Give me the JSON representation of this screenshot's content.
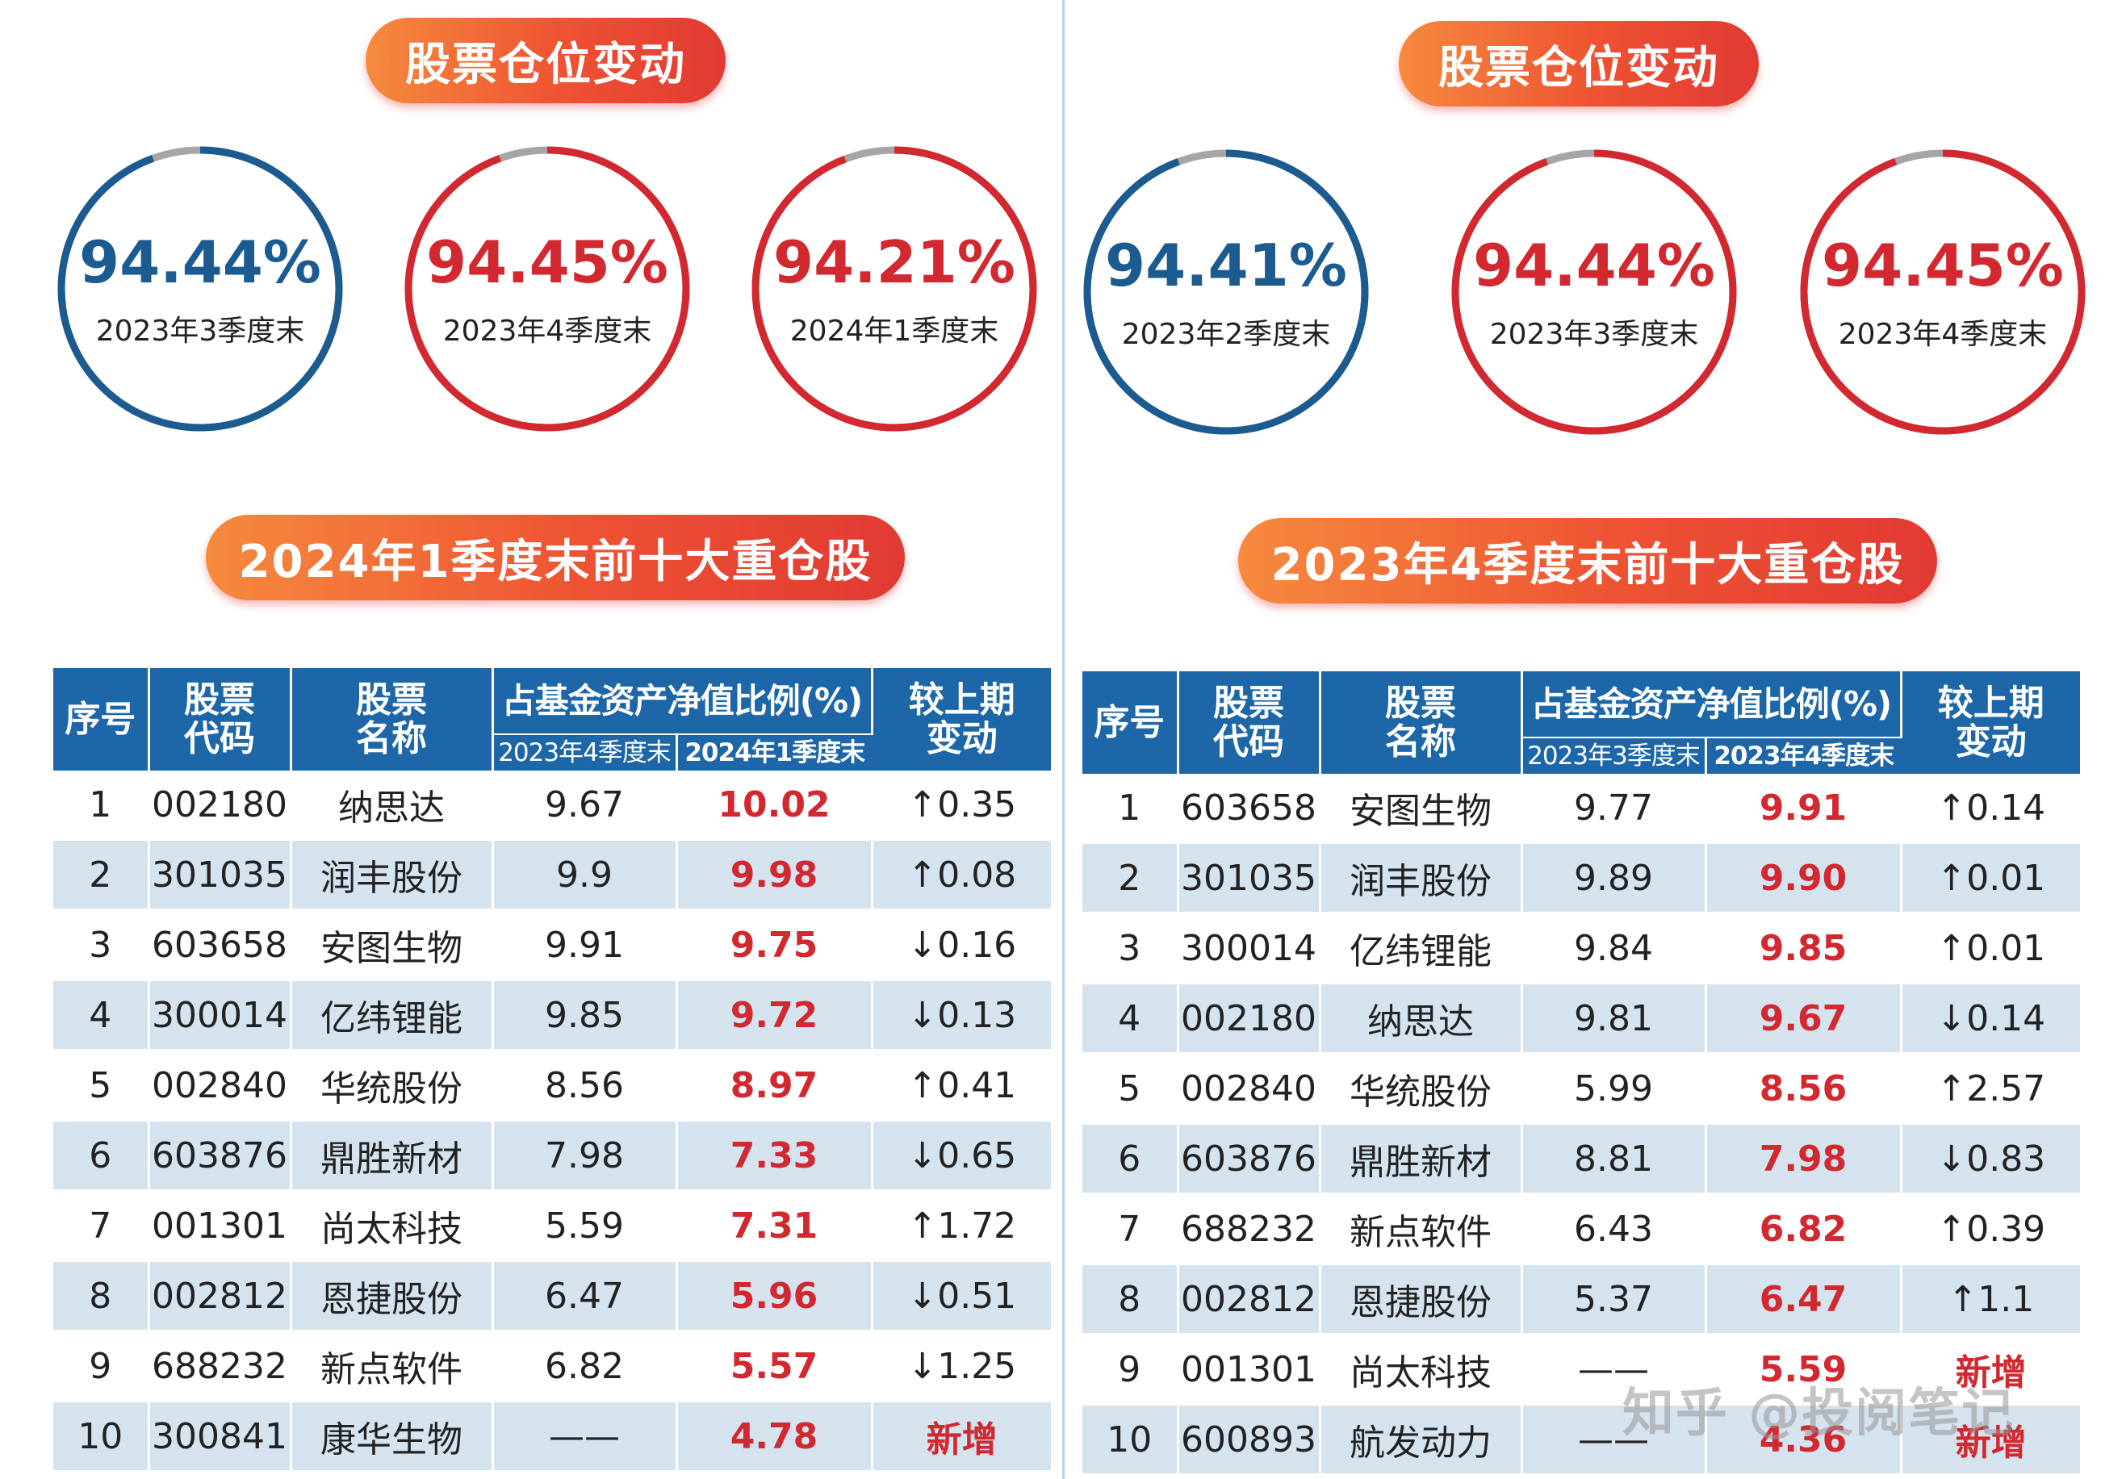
{
  "left": {
    "title": "股票仓位变动",
    "circles": [
      {
        "pct": "94.44%",
        "label": "2023年3季度末",
        "color": "#1b5b8f",
        "value": 94.44
      },
      {
        "pct": "94.45%",
        "label": "2023年4季度末",
        "color": "#d2282f",
        "value": 94.45
      },
      {
        "pct": "94.21%",
        "label": "2024年1季度末",
        "color": "#d2282f",
        "value": 94.21
      }
    ],
    "top10_title": "2024年1季度末前十大重仓股",
    "headers": {
      "no": "序号",
      "code": "股票代码",
      "name": "股票名称",
      "ratio": "占基金资产净值比例(%)",
      "prev": "2023年4季度末",
      "cur": "2024年1季度末",
      "change": "较上期变动"
    },
    "rows": [
      {
        "no": "1",
        "code": "002180",
        "name": "纳思达",
        "prev": "9.67",
        "cur": "10.02",
        "change": "↑0.35"
      },
      {
        "no": "2",
        "code": "301035",
        "name": "润丰股份",
        "prev": "9.9",
        "cur": "9.98",
        "change": "↑0.08"
      },
      {
        "no": "3",
        "code": "603658",
        "name": "安图生物",
        "prev": "9.91",
        "cur": "9.75",
        "change": "↓0.16"
      },
      {
        "no": "4",
        "code": "300014",
        "name": "亿纬锂能",
        "prev": "9.85",
        "cur": "9.72",
        "change": "↓0.13"
      },
      {
        "no": "5",
        "code": "002840",
        "name": "华统股份",
        "prev": "8.56",
        "cur": "8.97",
        "change": "↑0.41"
      },
      {
        "no": "6",
        "code": "603876",
        "name": "鼎胜新材",
        "prev": "7.98",
        "cur": "7.33",
        "change": "↓0.65"
      },
      {
        "no": "7",
        "code": "001301",
        "name": "尚太科技",
        "prev": "5.59",
        "cur": "7.31",
        "change": "↑1.72"
      },
      {
        "no": "8",
        "code": "002812",
        "name": "恩捷股份",
        "prev": "6.47",
        "cur": "5.96",
        "change": "↓0.51"
      },
      {
        "no": "9",
        "code": "688232",
        "name": "新点软件",
        "prev": "6.82",
        "cur": "5.57",
        "change": "↓1.25"
      },
      {
        "no": "10",
        "code": "300841",
        "name": "康华生物",
        "prev": "——",
        "cur": "4.78",
        "change": "新增",
        "is_new": true
      }
    ]
  },
  "right": {
    "title": "股票仓位变动",
    "circles": [
      {
        "pct": "94.41%",
        "label": "2023年2季度末",
        "color": "#1b5b8f",
        "value": 94.41
      },
      {
        "pct": "94.44%",
        "label": "2023年3季度末",
        "color": "#d2282f",
        "value": 94.44
      },
      {
        "pct": "94.45%",
        "label": "2023年4季度末",
        "color": "#d2282f",
        "value": 94.45
      }
    ],
    "top10_title": "2023年4季度末前十大重仓股",
    "headers": {
      "no": "序号",
      "code": "股票代码",
      "name": "股票名称",
      "ratio": "占基金资产净值比例(%)",
      "prev": "2023年3季度末",
      "cur": "2023年4季度末",
      "change": "较上期变动"
    },
    "rows": [
      {
        "no": "1",
        "code": "603658",
        "name": "安图生物",
        "prev": "9.77",
        "cur": "9.91",
        "change": "↑0.14"
      },
      {
        "no": "2",
        "code": "301035",
        "name": "润丰股份",
        "prev": "9.89",
        "cur": "9.90",
        "change": "↑0.01"
      },
      {
        "no": "3",
        "code": "300014",
        "name": "亿纬锂能",
        "prev": "9.84",
        "cur": "9.85",
        "change": "↑0.01"
      },
      {
        "no": "4",
        "code": "002180",
        "name": "纳思达",
        "prev": "9.81",
        "cur": "9.67",
        "change": "↓0.14"
      },
      {
        "no": "5",
        "code": "002840",
        "name": "华统股份",
        "prev": "5.99",
        "cur": "8.56",
        "change": "↑2.57"
      },
      {
        "no": "6",
        "code": "603876",
        "name": "鼎胜新材",
        "prev": "8.81",
        "cur": "7.98",
        "change": "↓0.83"
      },
      {
        "no": "7",
        "code": "688232",
        "name": "新点软件",
        "prev": "6.43",
        "cur": "6.82",
        "change": "↑0.39"
      },
      {
        "no": "8",
        "code": "002812",
        "name": "恩捷股份",
        "prev": "5.37",
        "cur": "6.47",
        "change": "↑1.1"
      },
      {
        "no": "9",
        "code": "001301",
        "name": "尚太科技",
        "prev": "——",
        "cur": "5.59",
        "change": "新增",
        "is_new": true
      },
      {
        "no": "10",
        "code": "600893",
        "name": "航发动力",
        "prev": "——",
        "cur": "4.36",
        "change": "新增",
        "is_new": true
      }
    ]
  },
  "watermark": "知乎 @投阅笔记",
  "colors": {
    "blue": "#1d67a8",
    "red": "#d2282f",
    "ring_gray": "#a6a6a6",
    "row_shade": "#d5e3ef"
  }
}
